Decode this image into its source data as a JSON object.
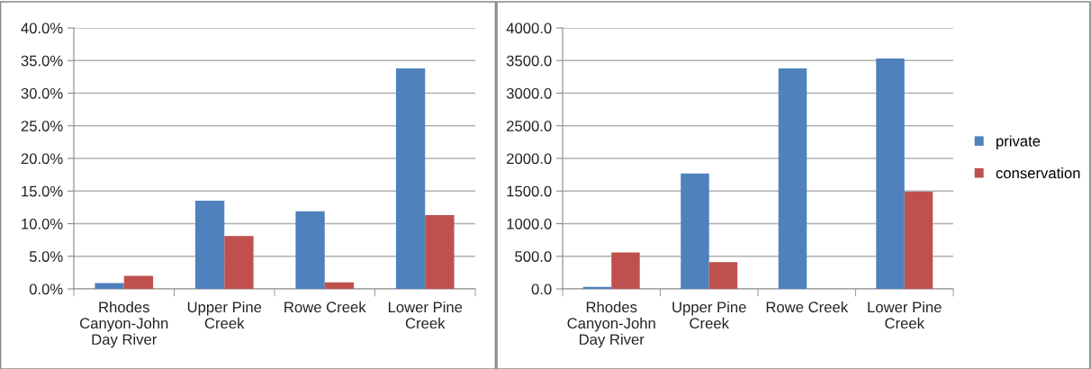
{
  "chart_data": [
    {
      "type": "bar",
      "categories": [
        "Rhodes Canyon-John Day River",
        "Upper Pine Creek",
        "Rowe Creek",
        "Lower Pine Creek"
      ],
      "series": [
        {
          "color": "#4f81bd",
          "values": [
            0.9,
            13.5,
            11.9,
            33.8
          ]
        },
        {
          "color": "#c0504d",
          "values": [
            2.0,
            8.1,
            1.0,
            11.3
          ]
        }
      ],
      "ylim": [
        0,
        40
      ],
      "yticks": [
        {
          "value": 0,
          "label": "0.0%"
        },
        {
          "value": 5,
          "label": "5.0%"
        },
        {
          "value": 10,
          "label": "10.0%"
        },
        {
          "value": 15,
          "label": "15.0%"
        },
        {
          "value": 20,
          "label": "20.0%"
        },
        {
          "value": 25,
          "label": "25.0%"
        },
        {
          "value": 30,
          "label": "30.0%"
        },
        {
          "value": 35,
          "label": "35.0%"
        },
        {
          "value": 40,
          "label": "40.0%"
        }
      ],
      "grid": "y",
      "legend": false
    },
    {
      "type": "bar",
      "categories": [
        "Rhodes Canyon-John Day River",
        "Upper Pine Creek",
        "Rowe Creek",
        "Lower Pine Creek"
      ],
      "series": [
        {
          "name": "private",
          "color": "#4f81bd",
          "values": [
            30,
            1770,
            3380,
            3530
          ]
        },
        {
          "name": "conservation",
          "color": "#c0504d",
          "values": [
            560,
            410,
            0,
            1490
          ]
        }
      ],
      "ylim": [
        0,
        4000
      ],
      "yticks": [
        {
          "value": 0,
          "label": "0.0"
        },
        {
          "value": 500,
          "label": "500.0"
        },
        {
          "value": 1000,
          "label": "1000.0"
        },
        {
          "value": 1500,
          "label": "1500.0"
        },
        {
          "value": 2000,
          "label": "2000.0"
        },
        {
          "value": 2500,
          "label": "2500.0"
        },
        {
          "value": 3000,
          "label": "3000.0"
        },
        {
          "value": 3500,
          "label": "3500.0"
        },
        {
          "value": 4000,
          "label": "4000.0"
        }
      ],
      "grid": "y",
      "legend": "right"
    }
  ]
}
